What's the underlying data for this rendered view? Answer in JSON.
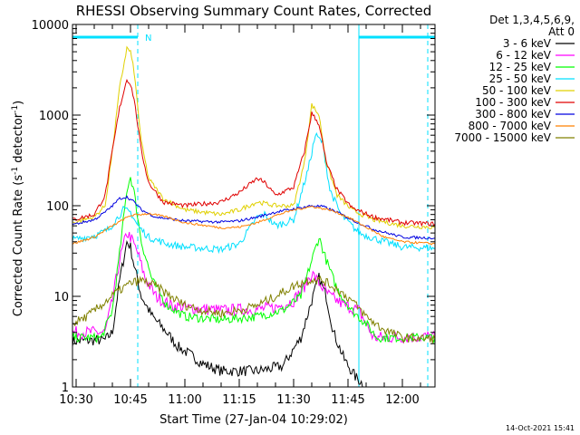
{
  "chart_data": {
    "type": "line",
    "title": "RHESSI Observing Summary Count Rates, Corrected",
    "xlabel": "Start Time (27-Jan-04 10:29:02)",
    "ylabel_main": "Corrected Count Rate (s",
    "ylabel_sup1": "-1",
    "ylabel_mid": " detector",
    "ylabel_sup2": "-1",
    "ylabel_end": ")",
    "x_scale": "time",
    "xlim": [
      "10:29",
      "12:09"
    ],
    "y_scale": "log",
    "ylim": [
      1,
      10000
    ],
    "x_ticks": [
      "10:30",
      "10:45",
      "11:00",
      "11:15",
      "11:30",
      "11:45",
      "12:00"
    ],
    "y_ticks": [
      {
        "value": 1,
        "label": "1"
      },
      {
        "value": 10,
        "label": "10"
      },
      {
        "value": 100,
        "label": "100"
      },
      {
        "value": 1000,
        "label": "1000"
      },
      {
        "value": 10000,
        "label": "10000"
      }
    ],
    "grid": false,
    "legend_position": "right",
    "legend_header": [
      "Det 1,3,4,5,6,9,",
      "Att 0"
    ],
    "timestamp": "14-Oct-2021 15:41",
    "annotations": [
      {
        "type": "bar",
        "label": "",
        "x": [
          "10:29",
          "10:47"
        ],
        "y": 7000,
        "color": "#00e0ff"
      },
      {
        "type": "bar",
        "label": "N",
        "x": [
          "10:47",
          "10:47"
        ],
        "y": 7000,
        "color": "#00e0ff"
      },
      {
        "type": "bar",
        "label": "",
        "x": [
          "11:48",
          "12:09"
        ],
        "y": 7000,
        "color": "#00e0ff"
      },
      {
        "type": "vline",
        "x": "10:29",
        "style": "solid",
        "color": "#00e0ff"
      },
      {
        "type": "vline",
        "x": "10:47",
        "style": "dashed",
        "color": "#00e0ff"
      },
      {
        "type": "vline",
        "x": "11:48",
        "style": "solid",
        "color": "#00e0ff"
      },
      {
        "type": "vline",
        "x": "12:07",
        "style": "dashed",
        "color": "#00e0ff"
      }
    ],
    "series": [
      {
        "name": "3 - 6 keV",
        "color": "#000000",
        "points": [
          [
            "10:29",
            3.2
          ],
          [
            "10:38",
            3.3
          ],
          [
            "10:40",
            4
          ],
          [
            "10:42",
            15
          ],
          [
            "10:44",
            40
          ],
          [
            "10:45",
            35
          ],
          [
            "10:46",
            22
          ],
          [
            "10:48",
            10
          ],
          [
            "10:51",
            6
          ],
          [
            "10:55",
            4
          ],
          [
            "10:58",
            2.8
          ],
          [
            "11:02",
            2.2
          ],
          [
            "11:05",
            1.8
          ],
          [
            "11:10",
            1.5
          ],
          [
            "11:20",
            1.5
          ],
          [
            "11:27",
            1.7
          ],
          [
            "11:32",
            3.5
          ],
          [
            "11:35",
            9
          ],
          [
            "11:37",
            16
          ],
          [
            "11:39",
            10
          ],
          [
            "11:41",
            4
          ],
          [
            "11:44",
            2
          ],
          [
            "11:47",
            1.3
          ],
          [
            "11:50",
            1.0
          ]
        ]
      },
      {
        "name": "6 - 12 keV",
        "color": "#ff00ff",
        "points": [
          [
            "10:29",
            4
          ],
          [
            "10:38",
            4
          ],
          [
            "10:40",
            9
          ],
          [
            "10:42",
            25
          ],
          [
            "10:44",
            50
          ],
          [
            "10:45",
            45
          ],
          [
            "10:47",
            30
          ],
          [
            "10:49",
            16
          ],
          [
            "10:52",
            10
          ],
          [
            "10:56",
            8
          ],
          [
            "11:00",
            7.5
          ],
          [
            "11:10",
            7
          ],
          [
            "11:20",
            7.2
          ],
          [
            "11:25",
            7.5
          ],
          [
            "11:30",
            9
          ],
          [
            "11:33",
            13
          ],
          [
            "11:35",
            18
          ],
          [
            "11:37",
            14
          ],
          [
            "11:40",
            10
          ],
          [
            "11:44",
            8
          ],
          [
            "11:48",
            7
          ],
          [
            "11:52",
            3.5
          ],
          [
            "12:09",
            3.6
          ]
        ]
      },
      {
        "name": "12 - 25 keV",
        "color": "#00ff00",
        "points": [
          [
            "10:29",
            3.5
          ],
          [
            "10:37",
            3.5
          ],
          [
            "10:40",
            7
          ],
          [
            "10:42",
            30
          ],
          [
            "10:44",
            150
          ],
          [
            "10:45",
            210
          ],
          [
            "10:46",
            140
          ],
          [
            "10:48",
            40
          ],
          [
            "10:51",
            15
          ],
          [
            "10:55",
            8
          ],
          [
            "11:00",
            6
          ],
          [
            "11:10",
            5.5
          ],
          [
            "11:20",
            6
          ],
          [
            "11:27",
            7
          ],
          [
            "11:32",
            10
          ],
          [
            "11:35",
            25
          ],
          [
            "11:37",
            45
          ],
          [
            "11:39",
            25
          ],
          [
            "11:42",
            12
          ],
          [
            "11:46",
            7
          ],
          [
            "11:50",
            5
          ],
          [
            "11:53",
            3.5
          ],
          [
            "12:09",
            3.5
          ]
        ]
      },
      {
        "name": "25 - 50 keV",
        "color": "#00e0ff",
        "points": [
          [
            "10:29",
            42
          ],
          [
            "10:36",
            48
          ],
          [
            "10:39",
            55
          ],
          [
            "10:41",
            70
          ],
          [
            "10:43",
            90
          ],
          [
            "10:45",
            85
          ],
          [
            "10:47",
            60
          ],
          [
            "10:50",
            45
          ],
          [
            "10:55",
            38
          ],
          [
            "11:00",
            35
          ],
          [
            "11:10",
            33
          ],
          [
            "11:15",
            38
          ],
          [
            "11:20",
            75
          ],
          [
            "11:22",
            80
          ],
          [
            "11:25",
            60
          ],
          [
            "11:30",
            70
          ],
          [
            "11:34",
            250
          ],
          [
            "11:36",
            600
          ],
          [
            "11:38",
            500
          ],
          [
            "11:40",
            150
          ],
          [
            "11:43",
            80
          ],
          [
            "11:48",
            50
          ],
          [
            "11:55",
            40
          ],
          [
            "12:00",
            35
          ],
          [
            "12:09",
            34
          ]
        ]
      },
      {
        "name": "50 - 100 keV",
        "color": "#e0d000",
        "points": [
          [
            "10:29",
            65
          ],
          [
            "10:35",
            75
          ],
          [
            "10:38",
            100
          ],
          [
            "10:40",
            400
          ],
          [
            "10:42",
            2000
          ],
          [
            "10:44",
            5500
          ],
          [
            "10:45",
            5000
          ],
          [
            "10:46",
            3000
          ],
          [
            "10:48",
            500
          ],
          [
            "10:50",
            200
          ],
          [
            "10:54",
            120
          ],
          [
            "11:00",
            90
          ],
          [
            "11:10",
            80
          ],
          [
            "11:15",
            90
          ],
          [
            "11:20",
            110
          ],
          [
            "11:25",
            100
          ],
          [
            "11:30",
            100
          ],
          [
            "11:33",
            300
          ],
          [
            "11:35",
            1300
          ],
          [
            "11:37",
            1000
          ],
          [
            "11:39",
            300
          ],
          [
            "11:42",
            130
          ],
          [
            "11:46",
            90
          ],
          [
            "11:52",
            70
          ],
          [
            "12:00",
            60
          ],
          [
            "12:09",
            58
          ]
        ]
      },
      {
        "name": "100 - 300 keV",
        "color": "#e00000",
        "points": [
          [
            "10:29",
            70
          ],
          [
            "10:35",
            80
          ],
          [
            "10:38",
            130
          ],
          [
            "10:40",
            400
          ],
          [
            "10:42",
            1200
          ],
          [
            "10:44",
            2500
          ],
          [
            "10:45",
            2200
          ],
          [
            "10:46",
            1500
          ],
          [
            "10:48",
            400
          ],
          [
            "10:50",
            180
          ],
          [
            "10:54",
            110
          ],
          [
            "11:00",
            100
          ],
          [
            "11:10",
            110
          ],
          [
            "11:15",
            140
          ],
          [
            "11:20",
            200
          ],
          [
            "11:22",
            180
          ],
          [
            "11:25",
            130
          ],
          [
            "11:30",
            160
          ],
          [
            "11:33",
            400
          ],
          [
            "11:35",
            1050
          ],
          [
            "11:37",
            800
          ],
          [
            "11:39",
            300
          ],
          [
            "11:42",
            150
          ],
          [
            "11:46",
            95
          ],
          [
            "11:52",
            75
          ],
          [
            "12:00",
            65
          ],
          [
            "12:09",
            63
          ]
        ]
      },
      {
        "name": "300 - 800 keV",
        "color": "#0000e0",
        "points": [
          [
            "10:29",
            62
          ],
          [
            "10:35",
            70
          ],
          [
            "10:38",
            85
          ],
          [
            "10:40",
            100
          ],
          [
            "10:42",
            120
          ],
          [
            "10:44",
            125
          ],
          [
            "10:46",
            110
          ],
          [
            "10:48",
            90
          ],
          [
            "10:52",
            75
          ],
          [
            "11:00",
            68
          ],
          [
            "11:10",
            66
          ],
          [
            "11:15",
            68
          ],
          [
            "11:20",
            75
          ],
          [
            "11:25",
            85
          ],
          [
            "11:30",
            92
          ],
          [
            "11:35",
            100
          ],
          [
            "11:38",
            98
          ],
          [
            "11:42",
            85
          ],
          [
            "11:46",
            70
          ],
          [
            "11:52",
            55
          ],
          [
            "12:00",
            45
          ],
          [
            "12:09",
            44
          ]
        ]
      },
      {
        "name": "800 - 7000 keV",
        "color": "#ff8000",
        "points": [
          [
            "10:29",
            38
          ],
          [
            "10:35",
            45
          ],
          [
            "10:40",
            60
          ],
          [
            "10:45",
            78
          ],
          [
            "10:50",
            82
          ],
          [
            "10:55",
            75
          ],
          [
            "11:00",
            65
          ],
          [
            "11:10",
            57
          ],
          [
            "11:15",
            58
          ],
          [
            "11:20",
            65
          ],
          [
            "11:25",
            78
          ],
          [
            "11:30",
            90
          ],
          [
            "11:35",
            98
          ],
          [
            "11:40",
            90
          ],
          [
            "11:45",
            75
          ],
          [
            "11:50",
            58
          ],
          [
            "11:55",
            45
          ],
          [
            "12:00",
            40
          ],
          [
            "12:09",
            38
          ]
        ]
      },
      {
        "name": "7000 - 15000 keV",
        "color": "#808000",
        "points": [
          [
            "10:29",
            5
          ],
          [
            "10:33",
            6
          ],
          [
            "10:37",
            8
          ],
          [
            "10:41",
            11
          ],
          [
            "10:45",
            14
          ],
          [
            "10:48",
            15
          ],
          [
            "10:52",
            13
          ],
          [
            "10:56",
            10
          ],
          [
            "11:00",
            8
          ],
          [
            "11:05",
            7
          ],
          [
            "11:10",
            6.5
          ],
          [
            "11:15",
            7
          ],
          [
            "11:20",
            8
          ],
          [
            "11:25",
            10
          ],
          [
            "11:30",
            13
          ],
          [
            "11:35",
            15.5
          ],
          [
            "11:38",
            15
          ],
          [
            "11:42",
            12
          ],
          [
            "11:46",
            9
          ],
          [
            "11:50",
            6
          ],
          [
            "11:54",
            4.5
          ],
          [
            "12:00",
            3.5
          ],
          [
            "12:09",
            3.4
          ]
        ]
      }
    ]
  }
}
